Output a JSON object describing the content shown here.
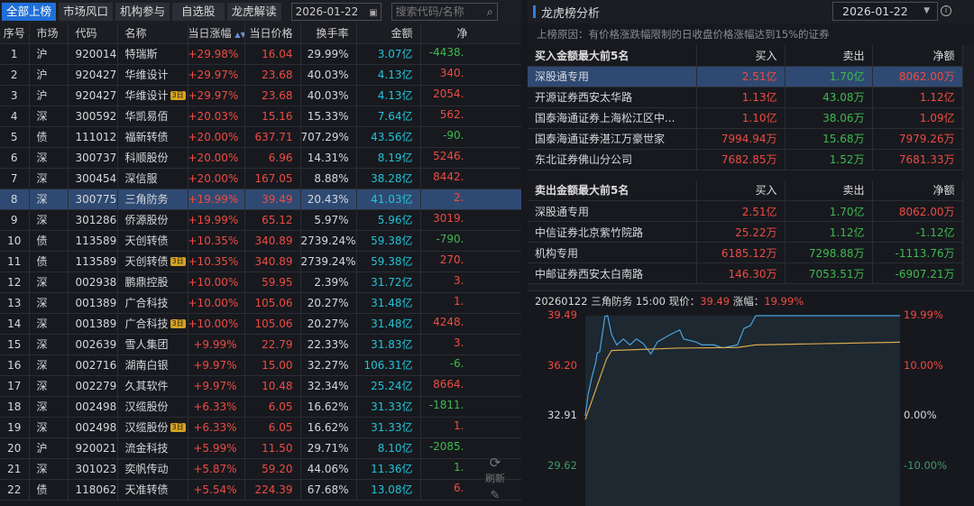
{
  "tabs": [
    "全部上榜",
    "市场风口",
    "机构参与",
    "自选股",
    "龙虎解读"
  ],
  "date": "2026-01-22",
  "search_placeholder": "搜索代码/名称",
  "columns": [
    "序号",
    "市场",
    "代码",
    "名称",
    "当日涨幅",
    "当日价格",
    "换手率",
    "金额",
    "净"
  ],
  "rows": [
    [
      "1",
      "沪",
      "920014",
      "特瑞斯",
      "",
      "+29.98%",
      "16.04",
      "29.99%",
      "3.07亿",
      "-4438.",
      "green"
    ],
    [
      "2",
      "沪",
      "920427",
      "华维设计",
      "",
      "+29.97%",
      "23.68",
      "40.03%",
      "4.13亿",
      "340.",
      "red"
    ],
    [
      "3",
      "沪",
      "920427",
      "华维设计",
      "3日",
      "+29.97%",
      "23.68",
      "40.03%",
      "4.13亿",
      "2054.",
      "red"
    ],
    [
      "4",
      "深",
      "300592",
      "华凯易佰",
      "",
      "+20.03%",
      "15.16",
      "15.33%",
      "7.64亿",
      "562.",
      "red"
    ],
    [
      "5",
      "债",
      "111012",
      "福新转债",
      "",
      "+20.00%",
      "637.71",
      "707.29%",
      "43.56亿",
      "-90.",
      "green"
    ],
    [
      "6",
      "深",
      "300737",
      "科顺股份",
      "",
      "+20.00%",
      "6.96",
      "14.31%",
      "8.19亿",
      "5246.",
      "red"
    ],
    [
      "7",
      "深",
      "300454",
      "深信服",
      "",
      "+20.00%",
      "167.05",
      "8.88%",
      "38.28亿",
      "8442.",
      "red"
    ],
    [
      "8",
      "深",
      "300775",
      "三角防务",
      "",
      "+19.99%",
      "39.49",
      "20.43%",
      "41.03亿",
      "2.",
      "red"
    ],
    [
      "9",
      "深",
      "301286",
      "侨源股份",
      "",
      "+19.99%",
      "65.12",
      "5.97%",
      "5.96亿",
      "3019.",
      "red"
    ],
    [
      "10",
      "债",
      "113589",
      "天创转债",
      "",
      "+10.35%",
      "340.89",
      "2739.24%",
      "59.38亿",
      "-790.",
      "green"
    ],
    [
      "11",
      "债",
      "113589",
      "天创转债",
      "3日",
      "+10.35%",
      "340.89",
      "2739.24%",
      "59.38亿",
      "270.",
      "red"
    ],
    [
      "12",
      "深",
      "002938",
      "鹏鼎控股",
      "",
      "+10.00%",
      "59.95",
      "2.39%",
      "31.72亿",
      "3.",
      "red"
    ],
    [
      "13",
      "深",
      "001389",
      "广合科技",
      "",
      "+10.00%",
      "105.06",
      "20.27%",
      "31.48亿",
      "1.",
      "red"
    ],
    [
      "14",
      "深",
      "001389",
      "广合科技",
      "3日",
      "+10.00%",
      "105.06",
      "20.27%",
      "31.48亿",
      "4248.",
      "red"
    ],
    [
      "15",
      "深",
      "002639",
      "雪人集团",
      "",
      "+9.99%",
      "22.79",
      "22.33%",
      "31.83亿",
      "3.",
      "red"
    ],
    [
      "16",
      "深",
      "002716",
      "湖南白银",
      "",
      "+9.97%",
      "15.00",
      "32.27%",
      "106.31亿",
      "-6.",
      "green"
    ],
    [
      "17",
      "深",
      "002279",
      "久其软件",
      "",
      "+9.97%",
      "10.48",
      "32.34%",
      "25.24亿",
      "8664.",
      "red"
    ],
    [
      "18",
      "深",
      "002498",
      "汉缆股份",
      "",
      "+6.33%",
      "6.05",
      "16.62%",
      "31.33亿",
      "-1811.",
      "green"
    ],
    [
      "19",
      "深",
      "002498",
      "汉缆股份",
      "3日",
      "+6.33%",
      "6.05",
      "16.62%",
      "31.33亿",
      "1.",
      "red"
    ],
    [
      "20",
      "沪",
      "920021",
      "流金科技",
      "",
      "+5.99%",
      "11.50",
      "29.71%",
      "8.10亿",
      "-2085.",
      "green"
    ],
    [
      "21",
      "深",
      "301023",
      "奕帆传动",
      "",
      "+5.87%",
      "59.20",
      "44.06%",
      "11.36亿",
      "1.",
      "green"
    ],
    [
      "22",
      "债",
      "118062",
      "天准转债",
      "",
      "+5.54%",
      "224.39",
      "67.68%",
      "13.08亿",
      "6.",
      "red"
    ]
  ],
  "selected_row": 7,
  "refresh_label": "刷新",
  "analysis": {
    "title": "龙虎榜分析",
    "date": "2026-01-22",
    "reason": "上榜原因：有价格涨跌幅限制的日收盘价格涨幅达到15%的证券",
    "buy_title": "买入金额最大前5名",
    "sell_title": "卖出金额最大前5名",
    "cols": [
      "买入",
      "卖出",
      "净额"
    ],
    "buy_rows": [
      [
        "深股通专用",
        "2.51亿",
        "1.70亿",
        "8062.00万",
        "red"
      ],
      [
        "开源证券西安太华路",
        "1.13亿",
        "43.08万",
        "1.12亿",
        "red"
      ],
      [
        "国泰海通证券上海松江区中...",
        "1.10亿",
        "38.06万",
        "1.09亿",
        "red"
      ],
      [
        "国泰海通证券湛江万豪世家",
        "7994.94万",
        "15.68万",
        "7979.26万",
        "red"
      ],
      [
        "东北证券佛山分公司",
        "7682.85万",
        "1.52万",
        "7681.33万",
        "red"
      ]
    ],
    "sell_rows": [
      [
        "深股通专用",
        "2.51亿",
        "1.70亿",
        "8062.00万",
        "red"
      ],
      [
        "中信证券北京紫竹院路",
        "25.22万",
        "1.12亿",
        "-1.12亿",
        "green"
      ],
      [
        "机构专用",
        "6185.12万",
        "7298.88万",
        "-1113.76万",
        "green"
      ],
      [
        "中邮证券西安太白南路",
        "146.30万",
        "7053.51万",
        "-6907.21万",
        "green"
      ]
    ]
  },
  "chart_data": {
    "type": "line",
    "header": {
      "date": "20260122",
      "name": "三角防务",
      "time": "15:00",
      "price_label": "现价：",
      "price": "39.49",
      "change_label": "涨幅：",
      "change": "19.99%"
    },
    "prev_close": 32.91,
    "y_left_ticks": [
      "39.49",
      "36.20",
      "32.91",
      "29.62"
    ],
    "y_right_ticks": [
      "19.99%",
      "10.00%",
      "0.00%",
      "-10.00%"
    ],
    "x_range_minutes": [
      0,
      240
    ],
    "series": [
      {
        "color": "#4aa3df",
        "x": [
          0,
          2,
          5,
          8,
          9,
          11,
          15,
          17,
          20,
          24,
          29,
          34,
          39,
          44,
          50,
          55,
          61,
          65,
          72,
          75,
          84,
          89,
          98,
          105,
          116,
          121,
          126,
          130,
          240
        ],
        "y": [
          32.91,
          34.25,
          35.44,
          36.43,
          37.02,
          37.12,
          39.45,
          39.49,
          38.26,
          37.57,
          37.96,
          37.57,
          37.96,
          37.67,
          36.98,
          37.77,
          38.06,
          38.26,
          38.55,
          37.96,
          37.77,
          37.57,
          37.57,
          37.37,
          37.57,
          38.65,
          38.85,
          39.49,
          39.49
        ]
      },
      {
        "color": "#d9a84e",
        "x": [
          0,
          16,
          20,
          71,
          116,
          130,
          240
        ],
        "y": [
          32.67,
          36.6,
          37.2,
          37.36,
          37.4,
          37.57,
          37.75
        ]
      }
    ]
  },
  "colors": {
    "up": "#ee4b43",
    "down": "#3fb950",
    "amount": "#22c3d8",
    "accent": "#1f6fd6"
  }
}
